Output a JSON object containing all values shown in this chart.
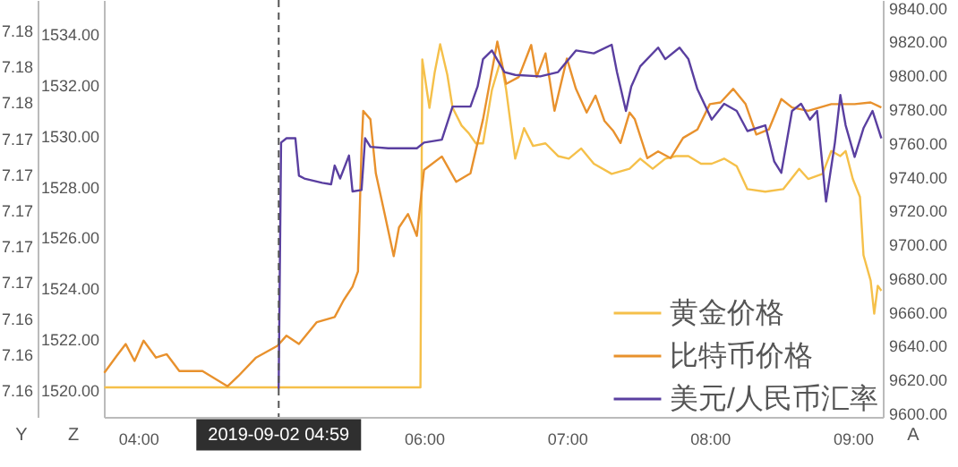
{
  "chart_data": {
    "type": "line",
    "xlim": [
      3.76,
      9.21
    ],
    "xticks": [
      {
        "value": 4,
        "label": "04:00"
      },
      {
        "value": 6,
        "label": "06:00"
      },
      {
        "value": 7,
        "label": "07:00"
      },
      {
        "value": 8,
        "label": "08:00"
      },
      {
        "value": 9,
        "label": "09:00"
      }
    ],
    "ylim": [
      1518.94,
      1535.34
    ],
    "yticks": [
      {
        "value": 1520,
        "label": "1520.00"
      },
      {
        "value": 1522,
        "label": "1522.00"
      },
      {
        "value": 1524,
        "label": "1524.00"
      },
      {
        "value": 1526,
        "label": "1526.00"
      },
      {
        "value": 1528,
        "label": "1528.00"
      },
      {
        "value": 1530,
        "label": "1530.00"
      },
      {
        "value": 1532,
        "label": "1532.00"
      },
      {
        "value": 1534,
        "label": "1534.00"
      }
    ],
    "y2lim": [
      9597.9,
      9844.6
    ],
    "y2ticks": [
      {
        "value": 9600,
        "label": "9600.00"
      },
      {
        "value": 9620,
        "label": "9620.00"
      },
      {
        "value": 9640,
        "label": "9640.00"
      },
      {
        "value": 9660,
        "label": "9660.00"
      },
      {
        "value": 9680,
        "label": "9680.00"
      },
      {
        "value": 9700,
        "label": "9700.00"
      },
      {
        "value": 9720,
        "label": "9720.00"
      },
      {
        "value": 9740,
        "label": "9740.00"
      },
      {
        "value": 9760,
        "label": "9760.00"
      },
      {
        "value": 9780,
        "label": "9780.00"
      },
      {
        "value": 9800,
        "label": "9800.00"
      },
      {
        "value": 9820,
        "label": "9820.00"
      },
      {
        "value": 9840,
        "label": "9840.00"
      }
    ],
    "y3lim": [
      7.15563,
      7.18461
    ],
    "y3ticks": [
      {
        "value": 7.1575,
        "label": "7.16"
      },
      {
        "value": 7.16,
        "label": "7.16"
      },
      {
        "value": 7.1625,
        "label": "7.16"
      },
      {
        "value": 7.165,
        "label": "7.17"
      },
      {
        "value": 7.1675,
        "label": "7.17"
      },
      {
        "value": 7.17,
        "label": "7.17"
      },
      {
        "value": 7.1725,
        "label": "7.17"
      },
      {
        "value": 7.175,
        "label": "7.17"
      },
      {
        "value": 7.1775,
        "label": "7.18"
      },
      {
        "value": 7.18,
        "label": "7.18"
      },
      {
        "value": 7.1825,
        "label": "7.18"
      }
    ],
    "series": [
      {
        "name": "黄金价格",
        "color": "#f5c04a",
        "x": [
          3.763,
          5.975,
          5.988,
          6.038,
          6.075,
          6.113,
          6.163,
          6.2,
          6.263,
          6.313,
          6.363,
          6.413,
          6.475,
          6.538,
          6.575,
          6.638,
          6.7,
          6.763,
          6.85,
          6.938,
          7.013,
          7.1,
          7.188,
          7.313,
          7.438,
          7.513,
          7.6,
          7.688,
          7.763,
          7.85,
          7.938,
          8.013,
          8.1,
          8.188,
          8.263,
          8.388,
          8.513,
          8.625,
          8.688,
          8.788,
          8.85,
          8.913,
          8.95,
          9.0,
          9.05,
          9.075,
          9.125,
          9.15,
          9.175,
          9.2
        ],
        "values": [
          1520.1,
          1520.1,
          1533.0,
          1531.1,
          1532.5,
          1533.6,
          1532.4,
          1531.1,
          1530.4,
          1530.1,
          1529.7,
          1529.7,
          1531.8,
          1533.0,
          1531.8,
          1529.1,
          1530.3,
          1529.6,
          1529.7,
          1529.2,
          1529.1,
          1529.5,
          1528.9,
          1528.5,
          1528.7,
          1529.1,
          1528.7,
          1529.1,
          1529.2,
          1529.2,
          1528.9,
          1528.9,
          1529.1,
          1528.8,
          1527.9,
          1527.8,
          1527.9,
          1528.7,
          1528.3,
          1528.5,
          1529.4,
          1529.2,
          1529.4,
          1528.3,
          1527.6,
          1525.3,
          1524.3,
          1523.0,
          1524.1,
          1523.9
        ]
      },
      {
        "name": "比特币价格",
        "color": "#e8912d",
        "axis": "y2",
        "x": [
          3.763,
          3.85,
          3.913,
          3.975,
          4.038,
          4.125,
          4.2,
          4.288,
          4.45,
          4.625,
          4.7,
          4.825,
          4.975,
          5.038,
          5.125,
          5.25,
          5.375,
          5.438,
          5.5,
          5.538,
          5.563,
          5.575,
          5.625,
          5.663,
          5.725,
          5.788,
          5.825,
          5.888,
          5.95,
          6.0,
          6.125,
          6.225,
          6.325,
          6.413,
          6.513,
          6.575,
          6.663,
          6.75,
          6.788,
          6.85,
          6.913,
          7.0,
          7.063,
          7.138,
          7.2,
          7.263,
          7.325,
          7.375,
          7.438,
          7.475,
          7.563,
          7.638,
          7.725,
          7.813,
          7.913,
          8.0,
          8.075,
          8.163,
          8.25,
          8.325,
          8.413,
          8.5,
          8.575,
          8.688,
          8.85,
          9.013,
          9.125,
          9.2
        ],
        "values": [
          9624,
          9634,
          9641,
          9631,
          9643,
          9633,
          9635,
          9625,
          9625,
          9616,
          9622,
          9633,
          9640,
          9646,
          9641,
          9654,
          9657,
          9667,
          9675,
          9684,
          9757,
          9779,
          9774,
          9742,
          9718,
          9693,
          9710,
          9718,
          9705,
          9744,
          9752,
          9737,
          9742,
          9774,
          9820,
          9795,
          9799,
          9818,
          9799,
          9813,
          9779,
          9810,
          9792,
          9778,
          9788,
          9773,
          9767,
          9760,
          9778,
          9774,
          9751,
          9755,
          9751,
          9763,
          9768,
          9783,
          9784,
          9792,
          9783,
          9765,
          9768,
          9786,
          9781,
          9779,
          9783,
          9783,
          9784,
          9781
        ]
      },
      {
        "name": "美元/人民币汇率",
        "color": "#5a3fa0",
        "axis": "y3",
        "x": [
          4.983,
          5.0,
          5.038,
          5.1,
          5.125,
          5.163,
          5.288,
          5.35,
          5.375,
          5.413,
          5.475,
          5.5,
          5.563,
          5.588,
          5.625,
          5.75,
          5.95,
          6.0,
          6.125,
          6.2,
          6.325,
          6.375,
          6.413,
          6.475,
          6.563,
          6.638,
          6.813,
          6.938,
          7.063,
          7.188,
          7.313,
          7.35,
          7.413,
          7.45,
          7.513,
          7.638,
          7.688,
          7.788,
          7.85,
          7.913,
          8.013,
          8.1,
          8.188,
          8.263,
          8.388,
          8.45,
          8.5,
          8.575,
          8.638,
          8.7,
          8.75,
          8.813,
          8.875,
          8.913,
          8.95,
          9.013,
          9.075,
          9.138,
          9.2
        ],
        "values": [
          7.1576,
          7.1747,
          7.175,
          7.175,
          7.1724,
          7.1722,
          7.1719,
          7.1718,
          7.1731,
          7.1722,
          7.1738,
          7.1713,
          7.1714,
          7.175,
          7.1744,
          7.1743,
          7.1743,
          7.1747,
          7.1749,
          7.1772,
          7.1772,
          7.1786,
          7.1805,
          7.1811,
          7.1796,
          7.1794,
          7.1793,
          7.1796,
          7.1811,
          7.1809,
          7.1815,
          7.1796,
          7.1769,
          7.1786,
          7.18,
          7.1813,
          7.1805,
          7.1813,
          7.1805,
          7.1784,
          7.1763,
          7.1774,
          7.1769,
          7.1755,
          7.1759,
          7.1734,
          7.1726,
          7.1769,
          7.1774,
          7.1763,
          7.1769,
          7.1706,
          7.1747,
          7.178,
          7.1759,
          7.1737,
          7.1757,
          7.1769,
          7.175
        ]
      }
    ],
    "ref_lines": [
      {
        "axis": "x",
        "value": 4.98333,
        "color": "#555555",
        "line_style": "dashed"
      }
    ],
    "annotations": [
      "2019-09-02  04:59",
      "Y",
      "Z",
      "A"
    ],
    "legend": "bottom right",
    "grid": false
  }
}
